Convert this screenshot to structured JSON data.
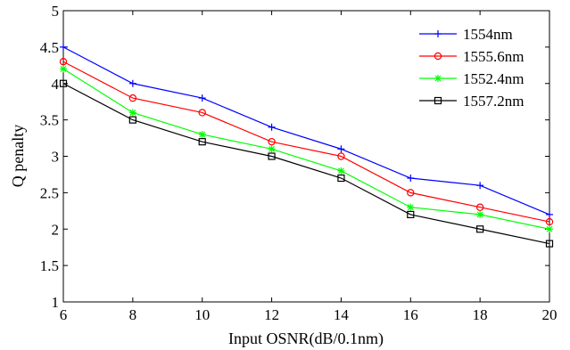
{
  "chart_data": {
    "type": "line",
    "xlabel": "Input OSNR(dB/0.1nm)",
    "ylabel": "Q penalty",
    "xlim": [
      6,
      20
    ],
    "ylim": [
      1,
      5
    ],
    "xticks": [
      6,
      8,
      10,
      12,
      14,
      16,
      18,
      20
    ],
    "yticks": [
      1,
      1.5,
      2,
      2.5,
      3,
      3.5,
      4,
      4.5,
      5
    ],
    "ytick_labels": [
      "1",
      "1.5",
      "2",
      "2.5",
      "3",
      "3.5",
      "4",
      "4.5",
      "5"
    ],
    "grid": false,
    "legend_position": "top-right",
    "x": [
      6,
      8,
      10,
      12,
      14,
      16,
      18,
      20
    ],
    "series": [
      {
        "name": "1554nm",
        "color": "#0000ff",
        "marker": "plus",
        "values": [
          4.5,
          4.0,
          3.8,
          3.4,
          3.1,
          2.7,
          2.6,
          2.2
        ]
      },
      {
        "name": "1555.6nm",
        "color": "#ff0000",
        "marker": "circle",
        "values": [
          4.3,
          3.8,
          3.6,
          3.2,
          3.0,
          2.5,
          2.3,
          2.1
        ]
      },
      {
        "name": "1552.4nm",
        "color": "#00ff00",
        "marker": "star",
        "values": [
          4.2,
          3.6,
          3.3,
          3.1,
          2.8,
          2.3,
          2.2,
          2.0
        ]
      },
      {
        "name": "1557.2nm",
        "color": "#000000",
        "marker": "square",
        "values": [
          4.0,
          3.5,
          3.2,
          3.0,
          2.7,
          2.2,
          2.0,
          1.8
        ]
      }
    ]
  }
}
